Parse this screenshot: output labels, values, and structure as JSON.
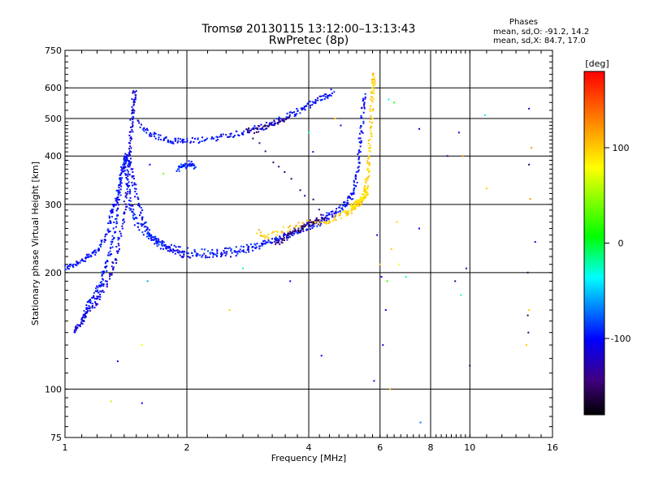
{
  "chart_data": {
    "type": "scatter",
    "title": "Tromsø 20130115 13:12:00–13:13:43",
    "subtitle": "RwPretec (8p)",
    "stats": {
      "heading": "Phases",
      "line_o": "mean, sd,O: -91.2, 14.2",
      "line_x": "mean, sd,X:  84.7, 17.0"
    },
    "xlabel": "Frequency [MHz]",
    "ylabel": "Stationary phase Virtual Height [km]",
    "xscale": "log",
    "yscale": "log",
    "xlim": [
      1,
      16
    ],
    "ylim": [
      75,
      750
    ],
    "xticks": [
      1,
      2,
      4,
      6,
      8,
      10,
      16
    ],
    "xtick_labels": [
      "1",
      "2",
      "4",
      "6",
      "8",
      "10",
      "16"
    ],
    "yticks": [
      75,
      100,
      200,
      300,
      400,
      500,
      600,
      750
    ],
    "ytick_labels": [
      "75",
      "100",
      "200",
      "300",
      "400",
      "500",
      "600",
      "750"
    ],
    "grid": true,
    "colorbar": {
      "label": "[deg]",
      "min": -180,
      "max": 180,
      "ticks": [
        100,
        0,
        -100
      ],
      "tick_labels": [
        "100",
        "0",
        "-100"
      ]
    },
    "traces": [
      {
        "phase": -100,
        "points": [
          [
            1.0,
            205
          ],
          [
            1.05,
            210
          ],
          [
            1.1,
            215
          ],
          [
            1.15,
            220
          ],
          [
            1.2,
            228
          ],
          [
            1.24,
            240
          ],
          [
            1.28,
            260
          ],
          [
            1.3,
            285
          ],
          [
            1.33,
            300
          ],
          [
            1.35,
            320
          ],
          [
            1.38,
            350
          ],
          [
            1.4,
            380
          ],
          [
            1.42,
            400
          ],
          [
            1.45,
            380
          ],
          [
            1.48,
            340
          ],
          [
            1.52,
            300
          ],
          [
            1.56,
            270
          ],
          [
            1.6,
            255
          ],
          [
            1.65,
            245
          ],
          [
            1.7,
            238
          ],
          [
            1.8,
            230
          ],
          [
            1.9,
            225
          ],
          [
            2.0,
            222
          ],
          [
            2.2,
            221
          ],
          [
            2.4,
            222
          ],
          [
            2.6,
            224
          ],
          [
            2.8,
            228
          ],
          [
            3.0,
            234
          ],
          [
            3.2,
            240
          ],
          [
            3.4,
            245
          ],
          [
            3.6,
            250
          ],
          [
            3.8,
            255
          ],
          [
            4.0,
            262
          ],
          [
            4.2,
            268
          ],
          [
            4.4,
            275
          ],
          [
            4.6,
            283
          ],
          [
            4.8,
            293
          ],
          [
            5.0,
            305
          ],
          [
            5.1,
            315
          ],
          [
            5.2,
            335
          ],
          [
            5.3,
            370
          ],
          [
            5.35,
            420
          ],
          [
            5.4,
            470
          ],
          [
            5.45,
            530
          ],
          [
            5.5,
            580
          ]
        ]
      },
      {
        "phase": -95,
        "points": [
          [
            1.1,
            150
          ],
          [
            1.13,
            160
          ],
          [
            1.16,
            170
          ],
          [
            1.2,
            180
          ],
          [
            1.23,
            190
          ],
          [
            1.26,
            205
          ],
          [
            1.29,
            225
          ],
          [
            1.32,
            250
          ],
          [
            1.34,
            280
          ],
          [
            1.36,
            320
          ],
          [
            1.38,
            360
          ],
          [
            1.4,
            400
          ],
          [
            1.42,
            360
          ],
          [
            1.44,
            320
          ],
          [
            1.46,
            290
          ],
          [
            1.5,
            270
          ],
          [
            1.6,
            250
          ],
          [
            1.7,
            240
          ],
          [
            1.8,
            234
          ],
          [
            2.0,
            228
          ],
          [
            2.3,
            226
          ],
          [
            2.6,
            228
          ],
          [
            3.0,
            236
          ],
          [
            3.5,
            250
          ],
          [
            4.0,
            265
          ],
          [
            4.5,
            282
          ],
          [
            5.0,
            300
          ]
        ]
      },
      {
        "phase": -110,
        "points": [
          [
            1.05,
            140
          ],
          [
            1.08,
            145
          ],
          [
            1.12,
            155
          ],
          [
            1.18,
            165
          ],
          [
            1.22,
            175
          ],
          [
            1.28,
            190
          ],
          [
            1.32,
            210
          ],
          [
            1.36,
            240
          ],
          [
            1.4,
            280
          ],
          [
            1.42,
            320
          ],
          [
            1.44,
            380
          ],
          [
            1.45,
            430
          ],
          [
            1.46,
            480
          ],
          [
            1.47,
            520
          ],
          [
            1.48,
            560
          ],
          [
            1.49,
            600
          ]
        ]
      },
      {
        "phase": -100,
        "points": [
          [
            1.52,
            490
          ],
          [
            1.6,
            460
          ],
          [
            1.7,
            448
          ],
          [
            1.8,
            440
          ],
          [
            1.9,
            437
          ],
          [
            2.0,
            437
          ],
          [
            2.2,
            440
          ],
          [
            2.4,
            447
          ],
          [
            2.6,
            455
          ],
          [
            2.8,
            463
          ],
          [
            3.0,
            472
          ],
          [
            3.2,
            482
          ],
          [
            3.4,
            495
          ],
          [
            3.6,
            510
          ],
          [
            3.8,
            525
          ],
          [
            4.0,
            540
          ],
          [
            4.2,
            555
          ],
          [
            4.4,
            572
          ],
          [
            4.6,
            590
          ]
        ]
      },
      {
        "phase": -90,
        "points": [
          [
            1.9,
            370
          ],
          [
            1.95,
            380
          ],
          [
            2.0,
            375
          ],
          [
            2.05,
            385
          ],
          [
            2.1,
            372
          ]
        ]
      },
      {
        "phase": 100,
        "points": [
          [
            3.0,
            255
          ],
          [
            3.2,
            248
          ],
          [
            3.6,
            262
          ],
          [
            4.0,
            270
          ],
          [
            4.3,
            268
          ],
          [
            4.6,
            275
          ],
          [
            4.9,
            285
          ],
          [
            5.1,
            290
          ],
          [
            5.3,
            300
          ],
          [
            5.45,
            310
          ],
          [
            5.55,
            330
          ],
          [
            5.6,
            360
          ],
          [
            5.65,
            400
          ],
          [
            5.7,
            460
          ],
          [
            5.72,
            520
          ],
          [
            5.75,
            580
          ],
          [
            5.78,
            620
          ],
          [
            5.8,
            650
          ]
        ]
      },
      {
        "phase": 90,
        "points": [
          [
            5.1,
            295
          ],
          [
            5.2,
            300
          ],
          [
            5.3,
            305
          ],
          [
            5.4,
            310
          ],
          [
            5.5,
            318
          ],
          [
            5.6,
            325
          ]
        ]
      },
      {
        "phase": -150,
        "points": [
          [
            3.3,
            238
          ],
          [
            3.5,
            246
          ],
          [
            3.7,
            255
          ],
          [
            3.9,
            262
          ],
          [
            4.1,
            270
          ],
          [
            4.4,
            280
          ],
          [
            2.8,
            462
          ],
          [
            3.0,
            470
          ],
          [
            3.3,
            488
          ],
          [
            3.6,
            505
          ]
        ]
      }
    ],
    "scatter": [
      [
        1.3,
        93,
        60
      ],
      [
        1.55,
        92,
        -100
      ],
      [
        1.55,
        130,
        80
      ],
      [
        1.6,
        190,
        -60
      ],
      [
        1.35,
        118,
        -120
      ],
      [
        1.75,
        360,
        40
      ],
      [
        1.62,
        380,
        -100
      ],
      [
        2.55,
        160,
        100
      ],
      [
        2.75,
        205,
        -30
      ],
      [
        3.6,
        190,
        -100
      ],
      [
        4.0,
        460,
        -30
      ],
      [
        4.1,
        410,
        -110
      ],
      [
        4.3,
        122,
        -110
      ],
      [
        4.65,
        500,
        95
      ],
      [
        4.8,
        480,
        -120
      ],
      [
        5.8,
        105,
        -120
      ],
      [
        6.1,
        130,
        -120
      ],
      [
        6.2,
        160,
        -110
      ],
      [
        6.05,
        195,
        -100
      ],
      [
        6.25,
        190,
        20
      ],
      [
        6.4,
        230,
        100
      ],
      [
        6.6,
        270,
        95
      ],
      [
        6.7,
        210,
        80
      ],
      [
        6.95,
        195,
        -30
      ],
      [
        7.5,
        260,
        -100
      ],
      [
        7.5,
        470,
        -110
      ],
      [
        7.55,
        82,
        -70
      ],
      [
        6.35,
        100,
        110
      ],
      [
        8.8,
        400,
        -140
      ],
      [
        9.2,
        190,
        -150
      ],
      [
        9.5,
        175,
        -30
      ],
      [
        9.8,
        205,
        -140
      ],
      [
        10.0,
        115,
        -150
      ],
      [
        9.6,
        400,
        120
      ],
      [
        9.4,
        460,
        -110
      ],
      [
        10.9,
        510,
        -40
      ],
      [
        11.0,
        330,
        100
      ],
      [
        13.8,
        130,
        100
      ],
      [
        13.9,
        155,
        -150
      ],
      [
        14.0,
        160,
        100
      ],
      [
        13.9,
        200,
        -150
      ],
      [
        14.1,
        310,
        120
      ],
      [
        14.0,
        380,
        -150
      ],
      [
        14.2,
        420,
        120
      ],
      [
        14.0,
        530,
        -120
      ],
      [
        14.5,
        240,
        -110
      ],
      [
        13.95,
        140,
        -150
      ],
      [
        6.3,
        560,
        -30
      ],
      [
        6.5,
        550,
        20
      ],
      [
        5.9,
        250,
        -100
      ],
      [
        6.0,
        210,
        100
      ]
    ]
  }
}
